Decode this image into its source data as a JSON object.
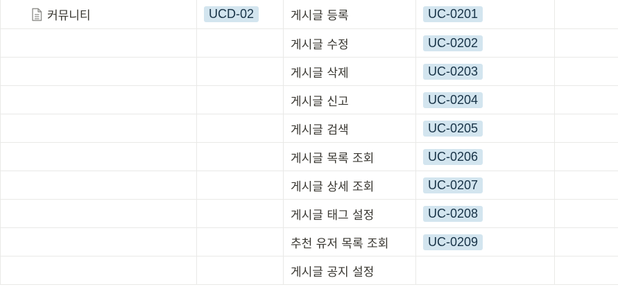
{
  "page": {
    "name": "커뮤니티",
    "ucd": "UCD-02",
    "icon": "document-icon"
  },
  "rows": [
    {
      "function": "게시글 등록",
      "uc": "UC-0201"
    },
    {
      "function": "게시글 수정",
      "uc": "UC-0202"
    },
    {
      "function": "게시글 삭제",
      "uc": "UC-0203"
    },
    {
      "function": "게시글 신고",
      "uc": "UC-0204"
    },
    {
      "function": "게시글 검색",
      "uc": "UC-0205"
    },
    {
      "function": "게시글 목록 조회",
      "uc": "UC-0206"
    },
    {
      "function": "게시글 상세 조회",
      "uc": "UC-0207"
    },
    {
      "function": "게시글 태그 설정",
      "uc": "UC-0208"
    },
    {
      "function": "추천 유저 목록 조회",
      "uc": "UC-0209"
    },
    {
      "function": "게시글 공지 설정",
      "uc": ""
    }
  ],
  "colors": {
    "tag_bg": "#d3e5ef",
    "tag_text": "#183347",
    "border": "#e9e9e7",
    "text": "#37352f"
  }
}
